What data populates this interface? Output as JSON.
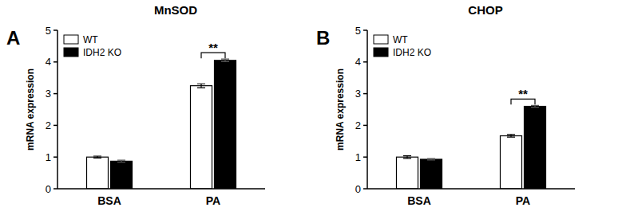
{
  "chart_data": [
    {
      "type": "bar",
      "panel_label": "A",
      "title": "MnSOD",
      "y_label": "mRNA expression",
      "categories": [
        "BSA",
        "PA"
      ],
      "series": [
        {
          "name": "WT",
          "color": "#ffffff",
          "values": [
            1.0,
            3.25
          ],
          "errors": [
            0.03,
            0.06
          ]
        },
        {
          "name": "IDH2 KO",
          "color": "#000000",
          "values": [
            0.87,
            4.05
          ],
          "errors": [
            0.03,
            0.04
          ]
        }
      ],
      "ylim": [
        0,
        5
      ],
      "yticks": [
        0,
        1,
        2,
        3,
        4,
        5
      ],
      "grid": false,
      "legend": "upper left",
      "annotations": [
        {
          "text": "**",
          "category": 1
        }
      ]
    },
    {
      "type": "bar",
      "panel_label": "B",
      "title": "CHOP",
      "y_label": "mRNA expression",
      "categories": [
        "BSA",
        "PA"
      ],
      "series": [
        {
          "name": "WT",
          "color": "#ffffff",
          "values": [
            1.0,
            1.67
          ],
          "errors": [
            0.04,
            0.04
          ]
        },
        {
          "name": "IDH2 KO",
          "color": "#000000",
          "values": [
            0.93,
            2.6
          ],
          "errors": [
            0.02,
            0.03
          ]
        }
      ],
      "ylim": [
        0,
        5
      ],
      "yticks": [
        0,
        1,
        2,
        3,
        4,
        5
      ],
      "grid": false,
      "legend": "upper left",
      "annotations": [
        {
          "text": "**",
          "category": 1
        }
      ]
    }
  ]
}
